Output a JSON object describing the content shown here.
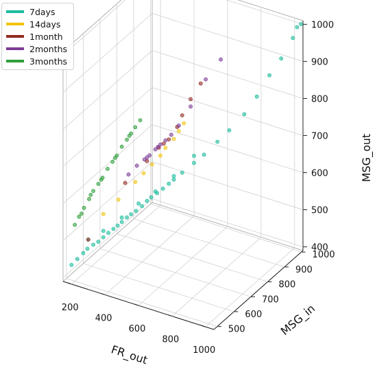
{
  "chart_data": {
    "type": "scatter",
    "projection": "3d",
    "xlabel": "FR_out",
    "ylabel": "MSG_in",
    "zlabel": "MSG_out",
    "xlim": [
      150,
      1050
    ],
    "ylim": [
      480,
      1010
    ],
    "zlim": [
      390,
      1010
    ],
    "xticks": [
      200,
      400,
      600,
      800,
      1000
    ],
    "yticks": [
      500,
      600,
      700,
      800,
      900,
      1000
    ],
    "zticks": [
      400,
      500,
      600,
      700,
      800,
      900,
      1000
    ],
    "grid": true,
    "legend_position": "top-left",
    "series": [
      {
        "name": "7days",
        "color": "#1abc9c",
        "points": [
          [
            160,
            520,
            420
          ],
          [
            175,
            540,
            430
          ],
          [
            190,
            560,
            440
          ],
          [
            205,
            570,
            450
          ],
          [
            220,
            590,
            455
          ],
          [
            240,
            600,
            462
          ],
          [
            255,
            615,
            470
          ],
          [
            270,
            630,
            478
          ],
          [
            285,
            645,
            485
          ],
          [
            300,
            655,
            492
          ],
          [
            315,
            665,
            500
          ],
          [
            330,
            680,
            508
          ],
          [
            345,
            690,
            515
          ],
          [
            360,
            705,
            520
          ],
          [
            380,
            720,
            530
          ],
          [
            395,
            735,
            540
          ],
          [
            410,
            745,
            548
          ],
          [
            430,
            760,
            556
          ],
          [
            450,
            775,
            565
          ],
          [
            470,
            790,
            575
          ],
          [
            490,
            800,
            585
          ],
          [
            520,
            820,
            600
          ],
          [
            560,
            850,
            620
          ],
          [
            600,
            870,
            640
          ],
          [
            650,
            900,
            670
          ],
          [
            700,
            920,
            700
          ],
          [
            760,
            950,
            740
          ],
          [
            820,
            965,
            790
          ],
          [
            880,
            980,
            850
          ],
          [
            940,
            990,
            900
          ],
          [
            1000,
            1000,
            960
          ],
          [
            1020,
            1005,
            990
          ],
          [
            1040,
            1008,
            1000
          ],
          [
            200,
            580,
            470
          ],
          [
            260,
            610,
            490
          ],
          [
            330,
            650,
            520
          ],
          [
            380,
            700,
            545
          ],
          [
            440,
            740,
            570
          ],
          [
            500,
            790,
            600
          ],
          [
            580,
            830,
            650
          ]
        ]
      },
      {
        "name": "14days",
        "color": "#f1c40f",
        "points": [
          [
            250,
            620,
            530
          ],
          [
            300,
            660,
            560
          ],
          [
            360,
            700,
            600
          ],
          [
            420,
            740,
            640
          ],
          [
            470,
            770,
            680
          ],
          [
            500,
            790,
            700
          ],
          [
            520,
            800,
            720
          ],
          [
            540,
            810,
            740
          ],
          [
            390,
            720,
            620
          ],
          [
            450,
            760,
            660
          ]
        ]
      },
      {
        "name": "1month",
        "color": "#922b21",
        "points": [
          [
            200,
            580,
            470
          ],
          [
            320,
            680,
            600
          ],
          [
            400,
            730,
            650
          ],
          [
            440,
            760,
            680
          ],
          [
            480,
            780,
            700
          ],
          [
            510,
            800,
            730
          ],
          [
            530,
            810,
            760
          ],
          [
            560,
            830,
            800
          ],
          [
            600,
            850,
            840
          ],
          [
            460,
            770,
            690
          ]
        ]
      },
      {
        "name": "2months",
        "color": "#7d3c98",
        "points": [
          [
            330,
            690,
            620
          ],
          [
            360,
            710,
            640
          ],
          [
            390,
            725,
            655
          ],
          [
            410,
            735,
            665
          ],
          [
            430,
            750,
            678
          ],
          [
            450,
            760,
            690
          ],
          [
            470,
            770,
            700
          ],
          [
            490,
            785,
            712
          ],
          [
            520,
            800,
            735
          ],
          [
            560,
            830,
            780
          ],
          [
            620,
            860,
            850
          ],
          [
            680,
            890,
            900
          ],
          [
            440,
            755,
            684
          ],
          [
            400,
            730,
            660
          ]
        ]
      },
      {
        "name": "3months",
        "color": "#2e9e3a",
        "points": [
          [
            160,
            540,
            520
          ],
          [
            175,
            550,
            540
          ],
          [
            190,
            565,
            560
          ],
          [
            205,
            580,
            580
          ],
          [
            220,
            590,
            600
          ],
          [
            235,
            605,
            615
          ],
          [
            250,
            615,
            630
          ],
          [
            265,
            630,
            650
          ],
          [
            280,
            645,
            665
          ],
          [
            295,
            655,
            680
          ],
          [
            310,
            670,
            700
          ],
          [
            325,
            685,
            715
          ],
          [
            340,
            695,
            730
          ],
          [
            355,
            705,
            745
          ],
          [
            370,
            720,
            760
          ],
          [
            180,
            560,
            545
          ],
          [
            210,
            585,
            590
          ],
          [
            245,
            612,
            625
          ],
          [
            290,
            650,
            675
          ],
          [
            335,
            690,
            725
          ]
        ]
      }
    ]
  }
}
